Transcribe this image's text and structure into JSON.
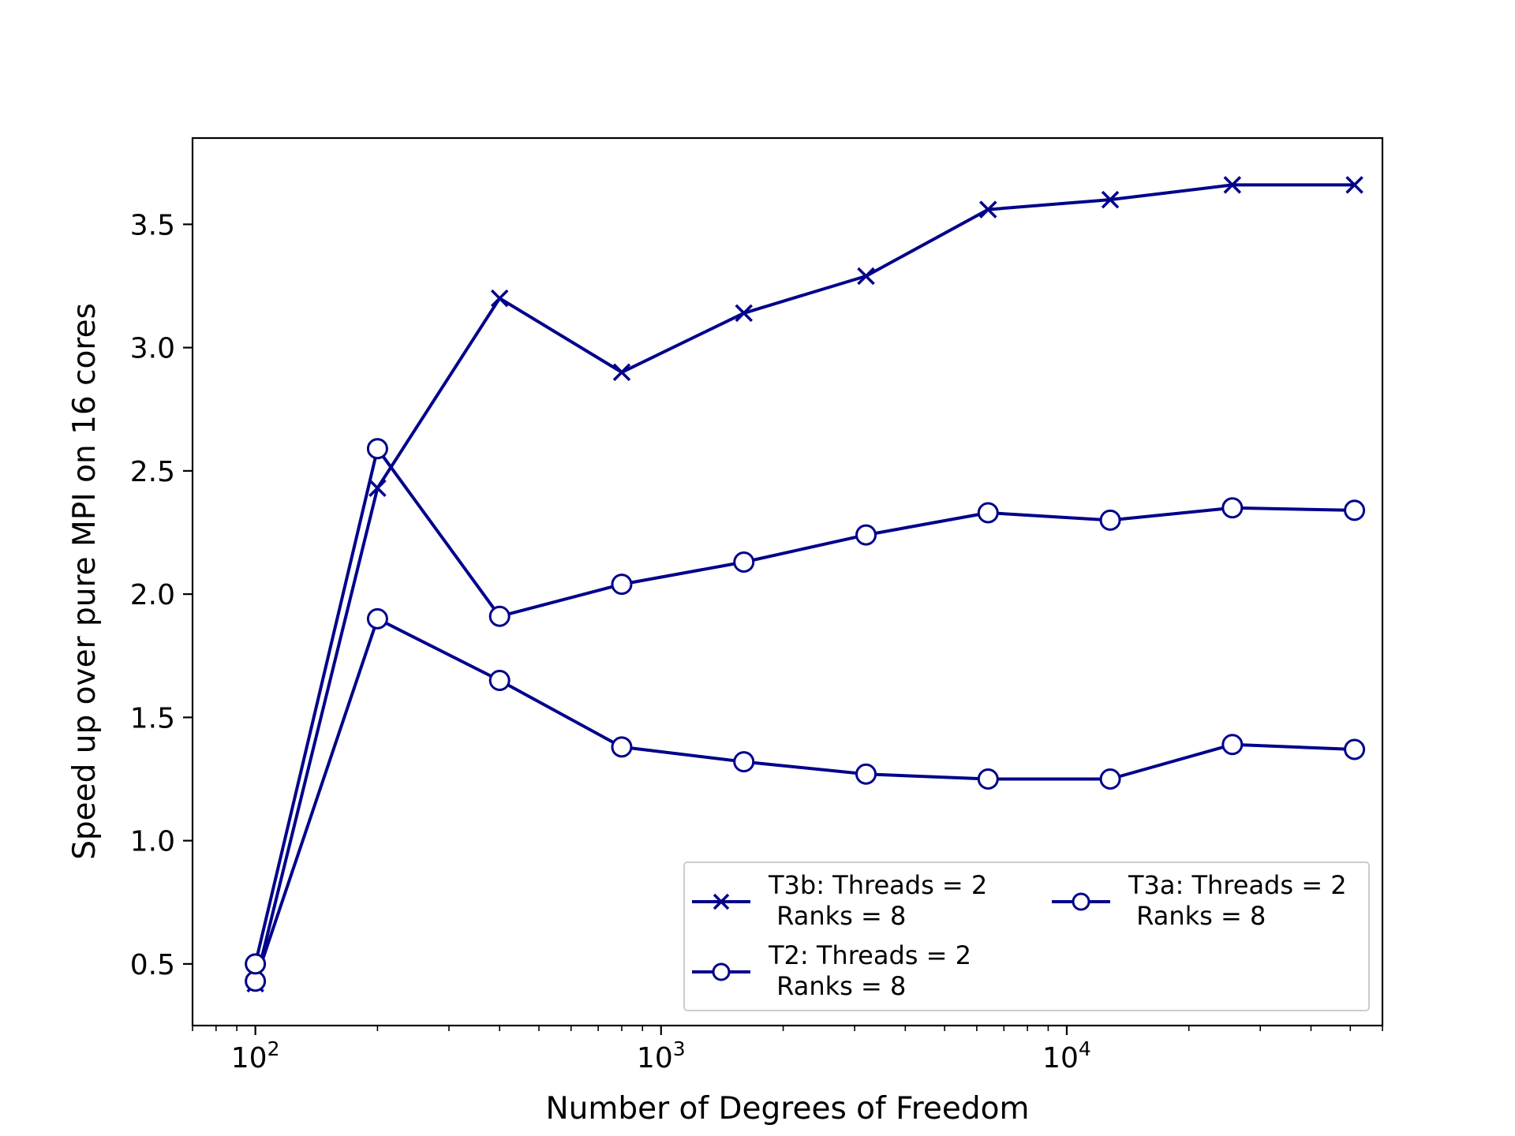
{
  "chart_data": {
    "type": "line",
    "xscale": "log",
    "xlabel": "Number of Degrees of Freedom",
    "ylabel": "Speed up over pure MPI on 16 cores",
    "xlim": [
      70,
      60000
    ],
    "ylim": [
      0.25,
      3.85
    ],
    "x": [
      100,
      200,
      400,
      800,
      1600,
      3200,
      6400,
      12800,
      25600,
      51200
    ],
    "series": [
      {
        "name": "T3b: Threads = 2\n Ranks = 8",
        "marker": "x",
        "values": [
          0.42,
          2.43,
          3.2,
          2.9,
          3.14,
          3.29,
          3.56,
          3.6,
          3.66,
          3.66
        ]
      },
      {
        "name": "T2: Threads = 2\n Ranks = 8",
        "marker": "o",
        "values": [
          0.43,
          1.9,
          1.65,
          1.38,
          1.32,
          1.27,
          1.25,
          1.25,
          1.39,
          1.37
        ]
      },
      {
        "name": "T3a: Threads = 2\n Ranks = 8",
        "marker": "o",
        "values": [
          0.5,
          2.59,
          1.91,
          2.04,
          2.13,
          2.24,
          2.33,
          2.3,
          2.35,
          2.34
        ]
      }
    ],
    "xticks": [
      {
        "base": "10",
        "exp": "2",
        "value": 100
      },
      {
        "base": "10",
        "exp": "3",
        "value": 1000
      },
      {
        "base": "10",
        "exp": "4",
        "value": 10000
      }
    ],
    "yticks": [
      "0.5",
      "1.0",
      "1.5",
      "2.0",
      "2.5",
      "3.0",
      "3.5"
    ],
    "ytick_values": [
      0.5,
      1.0,
      1.5,
      2.0,
      2.5,
      3.0,
      3.5
    ],
    "legend": {
      "placement": "lower-right",
      "entries": [
        {
          "line1": "T3b: Threads = 2",
          "line2": " Ranks = 8",
          "marker": "x"
        },
        {
          "line1": "T2: Threads = 2",
          "line2": " Ranks = 8",
          "marker": "o"
        },
        {
          "line1": "T3a: Threads = 2",
          "line2": " Ranks = 8",
          "marker": "o"
        }
      ]
    },
    "grid": false,
    "colors": {
      "line": "#00008b",
      "marker_fill": "#ffffff",
      "axes": "#000000"
    }
  }
}
